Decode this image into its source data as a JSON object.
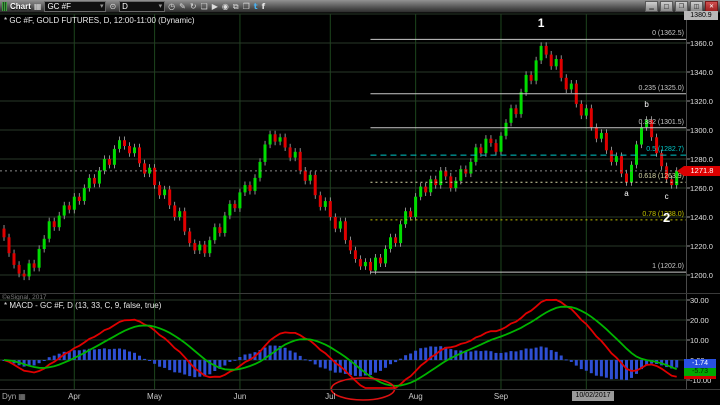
{
  "window": {
    "title": "Chart",
    "badge_glyph": "▦",
    "symbol_value": "GC #F",
    "interval_value": "D",
    "refresh_glyph": "⊙",
    "caret_glyph": "▾",
    "toolbar_icons": [
      {
        "name": "clock-icon",
        "glyph": "◷"
      },
      {
        "name": "pencil-icon",
        "glyph": "✎"
      },
      {
        "name": "reload-icon",
        "glyph": "↻"
      },
      {
        "name": "comment-icon",
        "glyph": "❏"
      },
      {
        "name": "play-icon",
        "glyph": "▶"
      },
      {
        "name": "alarm-icon",
        "glyph": "◉"
      },
      {
        "name": "link-icon",
        "glyph": "⧉"
      },
      {
        "name": "window-icon",
        "glyph": "❐"
      },
      {
        "name": "twitter-icon",
        "glyph": "t",
        "color": "#4ab2f1"
      },
      {
        "name": "facebook-icon",
        "glyph": "f",
        "color": "#e8e8e8"
      }
    ],
    "window_controls": [
      {
        "name": "minimize-button",
        "glyph": "▁"
      },
      {
        "name": "maximize-button",
        "glyph": "□"
      },
      {
        "name": "restore-button",
        "glyph": "❐"
      },
      {
        "name": "dock-button",
        "glyph": "◫"
      },
      {
        "name": "close-button",
        "glyph": "✕",
        "variant": "close"
      }
    ]
  },
  "price_chart": {
    "title": "* GC #F, GOLD FUTURES, D, 12:00-11:00 (Dynamic)",
    "scale_top_value": "1380.9",
    "last_price": "1271.8",
    "axis_ticks": [
      {
        "label": "1360.0",
        "price": 1360
      },
      {
        "label": "1340.0",
        "price": 1340
      },
      {
        "label": "1320.0",
        "price": 1320
      },
      {
        "label": "1300.0",
        "price": 1300
      },
      {
        "label": "1280.0",
        "price": 1280
      },
      {
        "label": "1260.0",
        "price": 1260
      },
      {
        "label": "1240.0",
        "price": 1240
      },
      {
        "label": "1220.0",
        "price": 1220
      },
      {
        "label": "1200.0",
        "price": 1200
      }
    ],
    "fib_levels": [
      {
        "label": "0 (1362.5)",
        "price": 1362.5,
        "color": "#c8c8c8",
        "style": "solid"
      },
      {
        "label": "0.235 (1325.0)",
        "price": 1325.0,
        "color": "#c8c8c8",
        "style": "solid"
      },
      {
        "label": "0.382 (1301.5)",
        "price": 1301.5,
        "color": "#c8c8c8",
        "style": "solid"
      },
      {
        "label": "0.5 (1282.7)",
        "price": 1282.7,
        "color": "#00c8c8",
        "style": "dashed"
      },
      {
        "label": "0.618 (1263.9)",
        "price": 1263.9,
        "color": "#d8d8a8",
        "style": "dotted"
      },
      {
        "label": "0.78 (1238.0)",
        "price": 1238.0,
        "color": "#c2c200",
        "style": "dotted"
      },
      {
        "label": "1 (1202.0)",
        "price": 1202.0,
        "color": "#c8c8c8",
        "style": "solid"
      }
    ],
    "elliott_labels": [
      {
        "text": "1",
        "bar": 107,
        "price": 1374,
        "size": 12,
        "bold": true
      },
      {
        "text": "a",
        "bar": 124,
        "price": 1256,
        "size": 8,
        "bold": false
      },
      {
        "text": "b",
        "bar": 128,
        "price": 1317,
        "size": 8,
        "bold": false
      },
      {
        "text": "c",
        "bar": 132,
        "price": 1254,
        "size": 8,
        "bold": false
      },
      {
        "text": "2",
        "bar": 132,
        "price": 1240,
        "size": 13,
        "bold": true
      }
    ],
    "fib_start_bar": 73
  },
  "time_axis": {
    "mode_label": "Dyn",
    "calendar_glyph": "▦",
    "months": [
      {
        "label": "Apr",
        "bar": 14
      },
      {
        "label": "May",
        "bar": 30
      },
      {
        "label": "Jun",
        "bar": 47
      },
      {
        "label": "Jul",
        "bar": 65
      },
      {
        "label": "Aug",
        "bar": 82
      },
      {
        "label": "Sep",
        "bar": 99
      }
    ],
    "extra_gridline_bar": 116,
    "crosshair_date": "10/02/2017"
  },
  "macd_panel": {
    "label": "* MACD - GC #F, D (13, 33, C, 9, false, true)",
    "copyright": "©eSignal, 2017",
    "params": {
      "fast": 13,
      "slow": 33,
      "source": "C",
      "smoothing": 9
    },
    "axis_ticks": [
      {
        "label": "30.00",
        "value": 30
      },
      {
        "label": "20.00",
        "value": 20
      },
      {
        "label": "10.00",
        "value": 10
      },
      {
        "label": "0.00",
        "value": 0
      },
      {
        "label": "-10.00",
        "value": -10
      }
    ],
    "readouts": [
      {
        "name": "macd-line-value",
        "text": "-7.47",
        "value": -7.47,
        "bg": "#d00000",
        "fg": "#ffffff"
      },
      {
        "name": "macd-signal-value",
        "text": "-5.73",
        "value": -5.73,
        "bg": "#00a800",
        "fg": "#002200"
      },
      {
        "name": "macd-hist-value",
        "text": "-1.74",
        "value": -1.74,
        "bg": "#2850e0",
        "fg": "#ffffff"
      }
    ],
    "colors": {
      "macd_line": "#e00000",
      "signal_line": "#00b400",
      "histogram": "#2e4fd4"
    },
    "annotation_circle": {
      "from_bar": 66,
      "to_bar": 77
    }
  },
  "chart_data": {
    "type": "candlestick",
    "instrument": "GC #F Gold Futures",
    "interval": "Daily",
    "title": "GC #F, GOLD FUTURES, D",
    "price_range": [
      1200,
      1380
    ],
    "last_price": 1271.8,
    "up_color": "#00dc00",
    "down_color": "#e00000",
    "wick_color": "#b0b0b0",
    "x_months": [
      "Apr",
      "May",
      "Jun",
      "Jul",
      "Aug",
      "Sep"
    ],
    "closes": [
      1226,
      1215,
      1207,
      1201,
      1199,
      1208,
      1205,
      1218,
      1225,
      1237,
      1233,
      1241,
      1248,
      1245,
      1254,
      1251,
      1260,
      1267,
      1263,
      1272,
      1280,
      1276,
      1287,
      1293,
      1289,
      1284,
      1288,
      1277,
      1270,
      1274,
      1262,
      1255,
      1259,
      1248,
      1240,
      1244,
      1230,
      1222,
      1217,
      1221,
      1215,
      1224,
      1233,
      1229,
      1241,
      1249,
      1246,
      1257,
      1262,
      1258,
      1267,
      1278,
      1290,
      1297,
      1292,
      1295,
      1288,
      1281,
      1285,
      1272,
      1265,
      1269,
      1255,
      1247,
      1251,
      1240,
      1232,
      1237,
      1224,
      1217,
      1211,
      1206,
      1209,
      1203,
      1212,
      1208,
      1218,
      1226,
      1222,
      1235,
      1244,
      1240,
      1254,
      1261,
      1257,
      1266,
      1262,
      1272,
      1268,
      1260,
      1265,
      1273,
      1270,
      1278,
      1288,
      1284,
      1294,
      1291,
      1285,
      1296,
      1305,
      1315,
      1311,
      1326,
      1338,
      1334,
      1348,
      1358,
      1352,
      1344,
      1349,
      1336,
      1328,
      1332,
      1318,
      1310,
      1315,
      1302,
      1294,
      1298,
      1286,
      1278,
      1282,
      1270,
      1264,
      1276,
      1290,
      1302,
      1307,
      1295,
      1284,
      1275,
      1266,
      1262,
      1271.8
    ]
  }
}
